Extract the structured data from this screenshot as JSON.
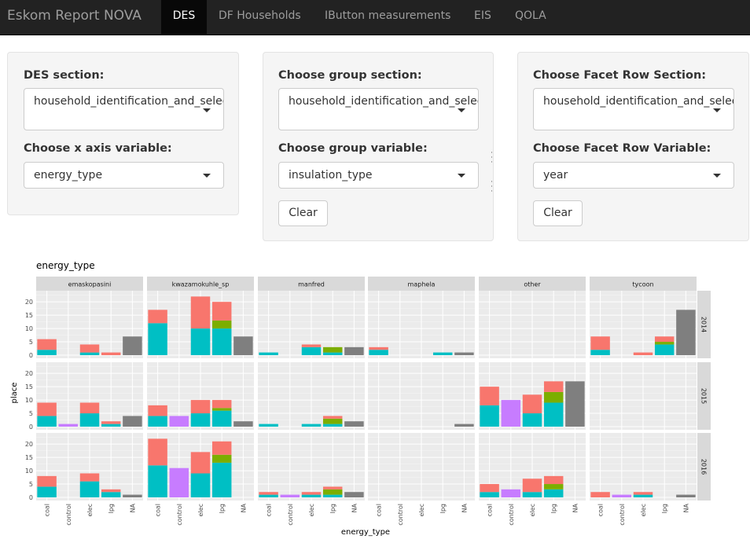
{
  "navbar": {
    "brand": "Eskom Report NOVA",
    "tabs": [
      {
        "label": "DES",
        "active": true
      },
      {
        "label": "DF Households",
        "active": false
      },
      {
        "label": "IButton measurements",
        "active": false
      },
      {
        "label": "EIS",
        "active": false
      },
      {
        "label": "QOLA",
        "active": false
      }
    ]
  },
  "panels": [
    {
      "section_label": "DES section:",
      "section_value": "household_identification_and_selection",
      "variable_label": "Choose x axis variable:",
      "variable_value": "energy_type"
    },
    {
      "section_label": "Choose group section:",
      "section_value": "household_identification_and_selection",
      "variable_label": "Choose group variable:",
      "variable_value": "insulation_type",
      "clear_label": "Clear"
    },
    {
      "section_label": "Choose Facet Row Section:",
      "section_value": "household_identification_and_selection",
      "variable_label": "Choose Facet Row Variable:",
      "variable_value": "year",
      "clear_label": "Clear"
    }
  ],
  "chart_data": {
    "type": "bar",
    "title": "energy_type",
    "xlabel": "energy_type",
    "ylabel": "place",
    "categories": [
      "coal",
      "control",
      "elec",
      "lpg",
      "NA"
    ],
    "facet_columns": [
      "emaskopasini",
      "kwazamokuhle_sp",
      "manfred",
      "maphela",
      "other",
      "tycoon"
    ],
    "facet_rows": [
      "2014",
      "2015",
      "2016"
    ],
    "yticks": [
      0,
      5,
      10,
      15,
      20
    ],
    "ylim": [
      0,
      23
    ],
    "fill_colors": {
      "teal": "#00BFC4",
      "salmon": "#F8766D",
      "olive": "#7CAE00",
      "purple": "#C77CFF",
      "grey": "#7F7F7F"
    },
    "panels": {
      "2014": {
        "emaskopasini": [
          [
            [
              "teal",
              2
            ],
            [
              "salmon",
              4
            ]
          ],
          [],
          [
            [
              "teal",
              1
            ],
            [
              "salmon",
              3
            ]
          ],
          [
            [
              "salmon",
              1
            ]
          ],
          [
            [
              "grey",
              7
            ]
          ]
        ],
        "kwazamokuhle_sp": [
          [
            [
              "teal",
              12
            ],
            [
              "salmon",
              5
            ]
          ],
          [],
          [
            [
              "teal",
              10
            ],
            [
              "salmon",
              12
            ]
          ],
          [
            [
              "teal",
              10
            ],
            [
              "olive",
              3
            ],
            [
              "salmon",
              7
            ]
          ],
          [
            [
              "grey",
              7
            ]
          ]
        ],
        "manfred": [
          [
            [
              "teal",
              1
            ]
          ],
          [],
          [
            [
              "teal",
              3
            ],
            [
              "salmon",
              1
            ]
          ],
          [
            [
              "teal",
              1
            ],
            [
              "olive",
              2
            ]
          ],
          [
            [
              "grey",
              3
            ]
          ]
        ],
        "maphela": [
          [
            [
              "teal",
              2
            ],
            [
              "salmon",
              1
            ]
          ],
          [],
          [],
          [
            [
              "teal",
              1
            ]
          ],
          [
            [
              "grey",
              1
            ]
          ]
        ],
        "other": [
          [],
          [],
          [],
          [],
          []
        ],
        "tycoon": [
          [
            [
              "teal",
              2
            ],
            [
              "salmon",
              5
            ]
          ],
          [],
          [
            [
              "salmon",
              1
            ]
          ],
          [
            [
              "teal",
              4
            ],
            [
              "olive",
              1
            ],
            [
              "salmon",
              2
            ]
          ],
          [
            [
              "grey",
              17
            ]
          ]
        ]
      },
      "2015": {
        "emaskopasini": [
          [
            [
              "teal",
              4
            ],
            [
              "salmon",
              5
            ]
          ],
          [
            [
              "purple",
              1
            ]
          ],
          [
            [
              "teal",
              5
            ],
            [
              "salmon",
              4
            ]
          ],
          [
            [
              "teal",
              1
            ],
            [
              "salmon",
              1
            ]
          ],
          [
            [
              "grey",
              4
            ]
          ]
        ],
        "kwazamokuhle_sp": [
          [
            [
              "teal",
              4
            ],
            [
              "salmon",
              4
            ]
          ],
          [
            [
              "purple",
              4
            ]
          ],
          [
            [
              "teal",
              5
            ],
            [
              "salmon",
              5
            ]
          ],
          [
            [
              "teal",
              6
            ],
            [
              "olive",
              1
            ],
            [
              "salmon",
              3
            ]
          ],
          [
            [
              "grey",
              2
            ]
          ]
        ],
        "manfred": [
          [
            [
              "teal",
              1
            ]
          ],
          [],
          [
            [
              "teal",
              1
            ]
          ],
          [
            [
              "teal",
              1
            ],
            [
              "olive",
              2
            ],
            [
              "salmon",
              1
            ]
          ],
          [
            [
              "grey",
              2
            ]
          ]
        ],
        "maphela": [
          [],
          [],
          [],
          [],
          [
            [
              "grey",
              1
            ]
          ]
        ],
        "other": [
          [
            [
              "teal",
              8
            ],
            [
              "salmon",
              7
            ]
          ],
          [
            [
              "purple",
              10
            ]
          ],
          [
            [
              "teal",
              5
            ],
            [
              "salmon",
              7
            ]
          ],
          [
            [
              "teal",
              9
            ],
            [
              "olive",
              4
            ],
            [
              "salmon",
              4
            ]
          ],
          [
            [
              "grey",
              17
            ]
          ]
        ],
        "tycoon": [
          [],
          [],
          [],
          [],
          []
        ]
      },
      "2016": {
        "emaskopasini": [
          [
            [
              "teal",
              4
            ],
            [
              "salmon",
              4
            ]
          ],
          [],
          [
            [
              "teal",
              6
            ],
            [
              "salmon",
              3
            ]
          ],
          [
            [
              "teal",
              2
            ],
            [
              "salmon",
              1
            ]
          ],
          [
            [
              "grey",
              1
            ]
          ]
        ],
        "kwazamokuhle_sp": [
          [
            [
              "teal",
              12
            ],
            [
              "salmon",
              10
            ]
          ],
          [
            [
              "purple",
              11
            ]
          ],
          [
            [
              "teal",
              9
            ],
            [
              "salmon",
              8
            ]
          ],
          [
            [
              "teal",
              13
            ],
            [
              "olive",
              3
            ],
            [
              "salmon",
              5
            ]
          ],
          []
        ],
        "manfred": [
          [
            [
              "teal",
              1
            ],
            [
              "salmon",
              1
            ]
          ],
          [
            [
              "purple",
              1
            ]
          ],
          [
            [
              "teal",
              1
            ],
            [
              "salmon",
              1
            ]
          ],
          [
            [
              "teal",
              1
            ],
            [
              "olive",
              2
            ],
            [
              "salmon",
              1
            ]
          ],
          [
            [
              "grey",
              2
            ]
          ]
        ],
        "maphela": [
          [],
          [],
          [],
          [],
          []
        ],
        "other": [
          [
            [
              "teal",
              2
            ],
            [
              "salmon",
              3
            ]
          ],
          [
            [
              "purple",
              3
            ]
          ],
          [
            [
              "teal",
              2
            ],
            [
              "salmon",
              5
            ]
          ],
          [
            [
              "teal",
              3
            ],
            [
              "olive",
              2
            ],
            [
              "salmon",
              3
            ]
          ],
          []
        ],
        "tycoon": [
          [
            [
              "salmon",
              2
            ]
          ],
          [
            [
              "purple",
              1
            ]
          ],
          [
            [
              "teal",
              1
            ],
            [
              "salmon",
              1
            ]
          ],
          [],
          [
            [
              "grey",
              1
            ]
          ]
        ]
      }
    }
  }
}
